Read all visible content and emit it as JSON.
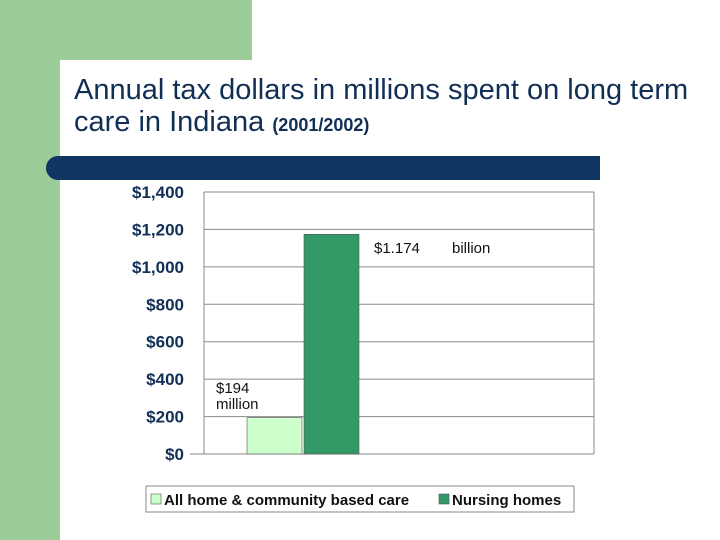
{
  "slide": {
    "title_main": "Annual tax dollars in millions spent on long term care in Indiana",
    "title_note": "(2001/2002)",
    "colors": {
      "accent_green": "#9ccc98",
      "title_navy": "#112f55",
      "rule_navy": "#0f3562"
    }
  },
  "chart_data": {
    "type": "bar",
    "title": "",
    "xlabel": "",
    "ylabel": "",
    "ylim": [
      0,
      1400
    ],
    "yticks": [
      0,
      200,
      400,
      600,
      800,
      1000,
      1200,
      1400
    ],
    "ytick_labels": [
      "$0",
      "$200",
      "$400",
      "$600",
      "$800",
      "$1,000",
      "$1,200",
      "$1,400"
    ],
    "grid": true,
    "legend_position": "bottom",
    "series": [
      {
        "name": "All home & community based care",
        "values": [
          194
        ],
        "color": "#ccffcc"
      },
      {
        "name": "Nursing homes",
        "values": [
          1174
        ],
        "color": "#339966"
      }
    ],
    "annotations": [
      {
        "series": 0,
        "lines": [
          "$194",
          "million"
        ]
      },
      {
        "series": 1,
        "lines": [
          "$1.174",
          "billion"
        ]
      }
    ]
  }
}
